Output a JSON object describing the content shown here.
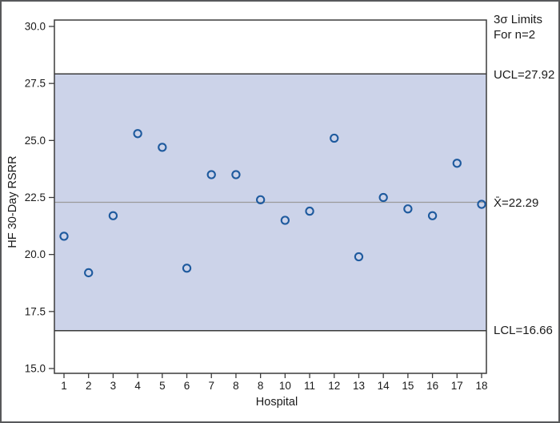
{
  "figure": {
    "background": "#ffffff",
    "border_color": "#58595b"
  },
  "chart_data": {
    "type": "scatter",
    "title": "",
    "xlabel": "Hospital",
    "ylabel": "HF 30-Day RSRR",
    "categories": [
      "1",
      "2",
      "3",
      "4",
      "5",
      "6",
      "7",
      "8",
      "8",
      "10",
      "11",
      "12",
      "13",
      "14",
      "15",
      "16",
      "17",
      "18"
    ],
    "values": [
      20.8,
      19.2,
      21.7,
      25.3,
      24.7,
      19.4,
      23.5,
      23.5,
      22.4,
      21.5,
      21.9,
      25.1,
      19.9,
      22.5,
      22.0,
      21.7,
      24.0,
      22.2
    ],
    "yticks": [
      30.0,
      27.5,
      25.0,
      22.5,
      20.0,
      17.5,
      15.0
    ],
    "ylim": [
      15.0,
      30.0
    ],
    "ucl": 27.92,
    "lcl": 16.66,
    "mean": 22.29,
    "grid": false,
    "legend_position": "right-margin",
    "annotations": {
      "sigma_line1": "3σ Limits",
      "sigma_line2": "For n=2",
      "ucl_label": "UCL=27.92",
      "mean_label": "X̄=22.29",
      "lcl_label": "LCL=16.66"
    },
    "colors": {
      "band": "#ccd3e9",
      "marker": "#1e5a9e",
      "centerline": "#9a9a9a",
      "frame": "#3b3b3b",
      "text": "#1a1a1a"
    }
  }
}
